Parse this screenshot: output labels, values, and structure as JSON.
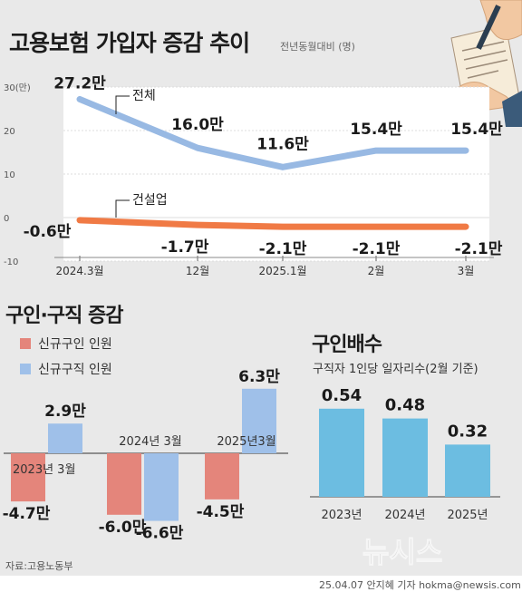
{
  "header": {
    "title": "고용보험 가입자 증감 추이",
    "subtitle": "전년동월대비 (명)"
  },
  "chart_data": [
    {
      "type": "line",
      "title": "고용보험 가입자 증감 추이",
      "subtitle": "전년동월대비 (명)",
      "x": [
        "2024.3월",
        "12월",
        "2025.1월",
        "2월",
        "3월"
      ],
      "yticks": [
        "30(만)",
        "20",
        "10",
        "0",
        "-10"
      ],
      "ylim": [
        -10,
        30
      ],
      "series": [
        {
          "name": "전체",
          "values": [
            27.2,
            16.0,
            11.6,
            15.4,
            15.4
          ],
          "labels": [
            "27.2만",
            "16.0만",
            "11.6만",
            "15.4만",
            "15.4만"
          ],
          "color": "#98b9e3"
        },
        {
          "name": "건설업",
          "values": [
            -0.6,
            -1.7,
            -2.1,
            -2.1,
            -2.1
          ],
          "labels": [
            "-0.6만",
            "-1.7만",
            "-2.1만",
            "-2.1만",
            "-2.1만"
          ],
          "color": "#f07a45"
        }
      ]
    },
    {
      "type": "bar",
      "title": "구인·구직 증감",
      "categories": [
        "2023년 3월",
        "2024년 3월",
        "2025년3월"
      ],
      "series": [
        {
          "name": "신규구인 인원",
          "values": [
            -4.7,
            -6.0,
            -4.5
          ],
          "labels": [
            "-4.7만",
            "-6.0만",
            "-4.5만"
          ],
          "color": "#e4857b"
        },
        {
          "name": "신규구직 인원",
          "values": [
            2.9,
            -6.6,
            6.3
          ],
          "labels": [
            "2.9만",
            "-6.6만",
            "6.3만"
          ],
          "color": "#9fc0e9"
        }
      ]
    },
    {
      "type": "bar",
      "title": "구인배수",
      "subtitle": "구직자 1인당 일자리수(2월 기준)",
      "categories": [
        "2023년",
        "2024년",
        "2025년"
      ],
      "values": [
        0.54,
        0.48,
        0.32
      ],
      "labels": [
        "0.54",
        "0.48",
        "0.32"
      ],
      "color": "#6cbde1"
    }
  ],
  "footer": {
    "source": "자료:고용노동부",
    "credit": "25.04.07 안지혜 기자 hokma@newsis.com",
    "watermark": "뉴시스"
  }
}
